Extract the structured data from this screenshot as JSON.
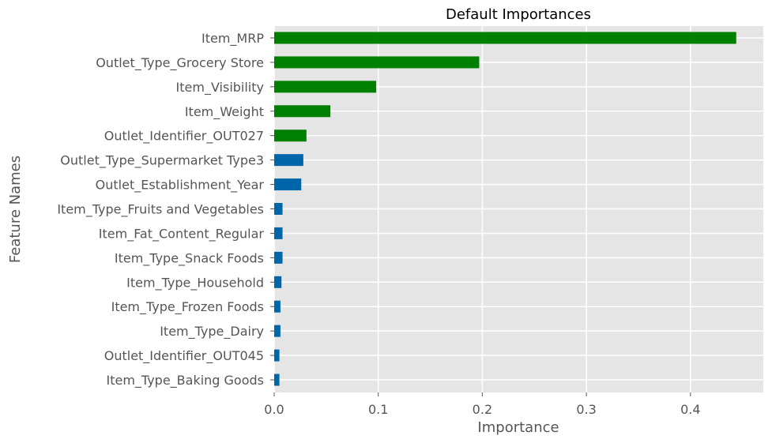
{
  "chart_data": {
    "type": "bar",
    "orientation": "horizontal",
    "title": "Default Importances",
    "xlabel": "Importance",
    "ylabel": "Feature Names",
    "xlim": [
      0,
      0.47
    ],
    "x_ticks": [
      "0.0",
      "0.1",
      "0.2",
      "0.3",
      "0.4"
    ],
    "grid": true,
    "categories": [
      "Item_MRP",
      "Outlet_Type_Grocery Store",
      "Item_Visibility",
      "Item_Weight",
      "Outlet_Identifier_OUT027",
      "Outlet_Type_Supermarket Type3",
      "Outlet_Establishment_Year",
      "Item_Type_Fruits and Vegetables",
      "Item_Fat_Content_Regular",
      "Item_Type_Snack Foods",
      "Item_Type_Household",
      "Item_Type_Frozen Foods",
      "Item_Type_Dairy",
      "Outlet_Identifier_OUT045",
      "Item_Type_Baking Goods"
    ],
    "values": [
      0.444,
      0.197,
      0.098,
      0.054,
      0.031,
      0.028,
      0.026,
      0.008,
      0.008,
      0.008,
      0.007,
      0.006,
      0.006,
      0.005,
      0.005
    ],
    "bar_colors": [
      "#008000",
      "#008000",
      "#008000",
      "#008000",
      "#008000",
      "#0066aa",
      "#0066aa",
      "#0066aa",
      "#0066aa",
      "#0066aa",
      "#0066aa",
      "#0066aa",
      "#0066aa",
      "#0066aa",
      "#0066aa"
    ]
  },
  "colors": {
    "plot_background": "#e5e5e5",
    "grid": "#ffffff",
    "text": "#555555",
    "highlight_bar": "#008000",
    "default_bar": "#0066aa"
  }
}
